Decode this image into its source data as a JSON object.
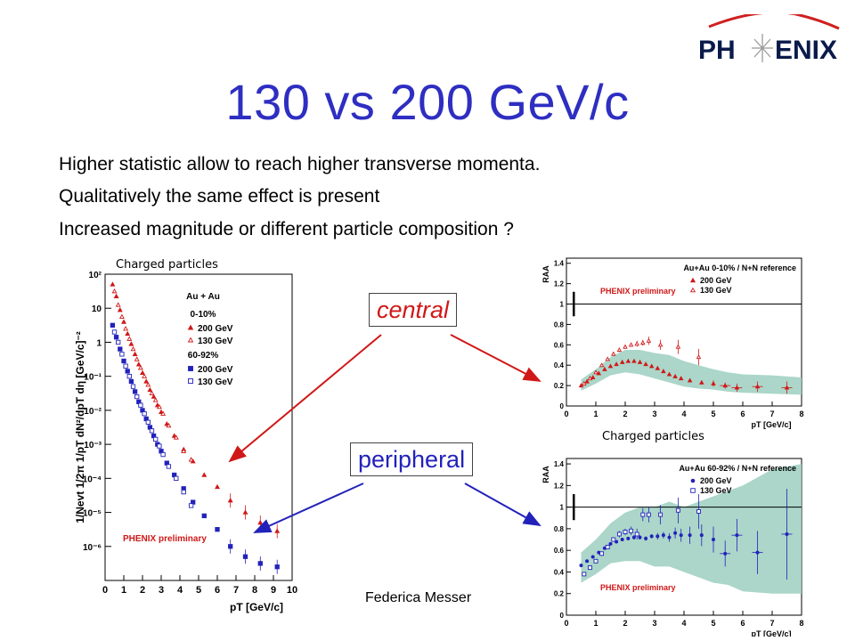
{
  "logo": {
    "text_left": "PH",
    "text_right": "ENIX",
    "color": "#0a1a4a",
    "accent": "#d02020"
  },
  "slide": {
    "title": "130 vs 200 GeV/c",
    "bullets": [
      "Higher statistic allow to reach higher transverse momenta.",
      "Qualitatively the same effect is present",
      "Increased magnitude or different particle composition ?"
    ],
    "callouts": {
      "central": "central",
      "peripheral": "peripheral"
    },
    "footer": "Federica Messer"
  },
  "colors": {
    "title": "#2e2ec2",
    "red": "#d01818",
    "blue": "#2222bb",
    "band": "#9ccfc0"
  },
  "chart_data": [
    {
      "type": "scatter",
      "caption": "Charged particles",
      "xlabel": "p_T [GeV/c]",
      "ylabel": "1/N_evt 1/2π 1/p_T dN²/dp_T dη [GeV/c]⁻²",
      "xlim": [
        0,
        10
      ],
      "ylim_log10": [
        -7,
        2
      ],
      "xticks": [
        "0",
        "1",
        "2",
        "3",
        "4",
        "5",
        "6",
        "7",
        "8",
        "9",
        "10"
      ],
      "yticks": [
        "10²",
        "10",
        "1",
        "10⁻¹",
        "10⁻²",
        "10⁻³",
        "10⁻⁴",
        "10⁻⁵",
        "10⁻⁶"
      ],
      "legend": {
        "header": "Au + Au",
        "groups": [
          "0-10%",
          "60-92%"
        ],
        "entries": [
          "200 GeV",
          "130 GeV",
          "200 GeV",
          "130 GeV"
        ]
      },
      "annotation": "PHENIX preliminary",
      "series": [
        {
          "name": "200 GeV",
          "group": "0-10%",
          "marker": "triangle-filled",
          "color": "#d01818",
          "x": [
            0.4,
            0.6,
            0.8,
            1.0,
            1.2,
            1.4,
            1.6,
            1.8,
            2.0,
            2.2,
            2.4,
            2.6,
            2.8,
            3.0,
            3.3,
            3.7,
            4.2,
            4.7,
            5.3,
            6.0,
            6.7,
            7.5,
            8.3,
            9.2
          ],
          "logy": [
            1.7,
            1.35,
            0.95,
            0.6,
            0.25,
            -0.05,
            -0.35,
            -0.65,
            -0.9,
            -1.15,
            -1.4,
            -1.6,
            -1.85,
            -2.05,
            -2.4,
            -2.75,
            -3.15,
            -3.5,
            -3.9,
            -4.25,
            -4.65,
            -5.0,
            -5.3,
            -5.55
          ]
        },
        {
          "name": "130 GeV",
          "group": "0-10%",
          "marker": "triangle-open",
          "color": "#d01818",
          "x": [
            0.5,
            0.7,
            0.9,
            1.1,
            1.3,
            1.5,
            1.7,
            1.9,
            2.1,
            2.3,
            2.5,
            2.7,
            2.9,
            3.1,
            3.4,
            3.8,
            4.2,
            4.6
          ],
          "logy": [
            1.5,
            1.1,
            0.75,
            0.4,
            0.1,
            -0.2,
            -0.5,
            -0.75,
            -1.0,
            -1.25,
            -1.5,
            -1.7,
            -1.9,
            -2.1,
            -2.45,
            -2.8,
            -3.2,
            -3.45
          ]
        },
        {
          "name": "200 GeV",
          "group": "60-92%",
          "marker": "square-filled",
          "color": "#2222bb",
          "x": [
            0.4,
            0.6,
            0.8,
            1.0,
            1.2,
            1.4,
            1.6,
            1.8,
            2.0,
            2.2,
            2.4,
            2.6,
            2.8,
            3.0,
            3.3,
            3.7,
            4.2,
            4.7,
            5.3,
            6.0,
            6.7,
            7.5,
            8.3,
            9.2
          ],
          "logy": [
            0.5,
            0.15,
            -0.2,
            -0.55,
            -0.85,
            -1.15,
            -1.45,
            -1.75,
            -2.0,
            -2.25,
            -2.5,
            -2.75,
            -3.0,
            -3.2,
            -3.55,
            -3.9,
            -4.3,
            -4.7,
            -5.1,
            -5.5,
            -6.0,
            -6.3,
            -6.5,
            -6.6
          ]
        },
        {
          "name": "130 GeV",
          "group": "60-92%",
          "marker": "square-open",
          "color": "#2222bb",
          "x": [
            0.5,
            0.7,
            0.9,
            1.1,
            1.3,
            1.5,
            1.7,
            1.9,
            2.1,
            2.3,
            2.5,
            2.7,
            2.9,
            3.1,
            3.4,
            3.8,
            4.2,
            4.6
          ],
          "logy": [
            0.3,
            0.0,
            -0.35,
            -0.7,
            -1.0,
            -1.3,
            -1.6,
            -1.85,
            -2.1,
            -2.35,
            -2.6,
            -2.85,
            -3.05,
            -3.3,
            -3.65,
            -4.0,
            -4.4,
            -4.8
          ]
        }
      ]
    },
    {
      "type": "scatter",
      "title": "Au+Au 0-10% / N+N reference",
      "ylabel": "R_AA",
      "xlabel": "p_T [GeV/c]",
      "xlim": [
        0,
        8
      ],
      "ylim": [
        0,
        1.45
      ],
      "xticks": [
        "0",
        "1",
        "2",
        "3",
        "4",
        "5",
        "6",
        "7",
        "8"
      ],
      "yticks": [
        "0",
        "0.2",
        "0.4",
        "0.6",
        "0.8",
        "1",
        "1.2",
        "1.4"
      ],
      "annotation": "PHENIX preliminary",
      "legend": [
        "200 GeV",
        "130 GeV"
      ],
      "band": {
        "x": [
          0.5,
          1.0,
          1.5,
          2.0,
          2.5,
          3.0,
          3.5,
          4.0,
          4.5,
          5.0,
          5.5,
          6.0,
          7.0,
          8.0
        ],
        "lo": [
          0.15,
          0.22,
          0.3,
          0.33,
          0.31,
          0.27,
          0.23,
          0.19,
          0.17,
          0.16,
          0.14,
          0.13,
          0.12,
          0.11
        ],
        "hi": [
          0.26,
          0.36,
          0.48,
          0.55,
          0.55,
          0.52,
          0.5,
          0.44,
          0.4,
          0.36,
          0.33,
          0.31,
          0.3,
          0.28
        ]
      },
      "series": [
        {
          "name": "200 GeV",
          "marker": "triangle-filled",
          "color": "#d01818",
          "x": [
            0.5,
            0.7,
            0.9,
            1.1,
            1.3,
            1.5,
            1.7,
            1.9,
            2.1,
            2.3,
            2.5,
            2.7,
            2.9,
            3.1,
            3.3,
            3.5,
            3.7,
            3.9,
            4.2,
            4.6,
            5.0,
            5.4,
            5.8,
            6.5,
            7.5
          ],
          "y": [
            0.2,
            0.24,
            0.28,
            0.32,
            0.36,
            0.39,
            0.41,
            0.43,
            0.44,
            0.44,
            0.43,
            0.41,
            0.39,
            0.37,
            0.34,
            0.31,
            0.29,
            0.27,
            0.25,
            0.23,
            0.22,
            0.2,
            0.18,
            0.19,
            0.18
          ],
          "err": [
            0.01,
            0.01,
            0.01,
            0.01,
            0.01,
            0.01,
            0.01,
            0.01,
            0.01,
            0.01,
            0.01,
            0.01,
            0.01,
            0.01,
            0.01,
            0.01,
            0.01,
            0.01,
            0.02,
            0.02,
            0.03,
            0.03,
            0.04,
            0.05,
            0.06
          ]
        },
        {
          "name": "130 GeV",
          "marker": "triangle-open",
          "color": "#d01818",
          "x": [
            0.6,
            0.8,
            1.0,
            1.2,
            1.4,
            1.6,
            1.8,
            2.0,
            2.2,
            2.4,
            2.6,
            2.8,
            3.2,
            3.8,
            4.5
          ],
          "y": [
            0.22,
            0.27,
            0.33,
            0.4,
            0.46,
            0.51,
            0.55,
            0.58,
            0.6,
            0.61,
            0.62,
            0.64,
            0.6,
            0.58,
            0.48
          ],
          "err": [
            0.01,
            0.01,
            0.01,
            0.01,
            0.01,
            0.02,
            0.02,
            0.02,
            0.02,
            0.03,
            0.03,
            0.04,
            0.05,
            0.07,
            0.08
          ]
        }
      ]
    },
    {
      "type": "scatter",
      "caption": "Charged particles",
      "title": "Au+Au 60-92% / N+N reference",
      "ylabel": "R_AA",
      "xlabel": "p_T [GeV/c]",
      "xlim": [
        0,
        8
      ],
      "ylim": [
        0,
        1.45
      ],
      "xticks": [
        "0",
        "1",
        "2",
        "3",
        "4",
        "5",
        "6",
        "7",
        "8"
      ],
      "yticks": [
        "0",
        "0.2",
        "0.4",
        "0.6",
        "0.8",
        "1",
        "1.2",
        "1.4"
      ],
      "annotation": "PHENIX preliminary",
      "legend": [
        "200 GeV",
        "130 GeV"
      ],
      "band": {
        "x": [
          0.5,
          1.0,
          1.5,
          2.0,
          2.5,
          3.0,
          3.5,
          4.0,
          4.5,
          5.0,
          5.5,
          6.0,
          7.0,
          8.0
        ],
        "lo": [
          0.3,
          0.38,
          0.48,
          0.5,
          0.5,
          0.45,
          0.45,
          0.4,
          0.35,
          0.3,
          0.28,
          0.22,
          0.2,
          0.2
        ],
        "hi": [
          0.58,
          0.7,
          0.85,
          0.95,
          1.0,
          1.0,
          1.05,
          1.0,
          1.05,
          1.1,
          1.15,
          1.2,
          1.35,
          1.4
        ]
      },
      "series": [
        {
          "name": "200 GeV",
          "marker": "circle-filled",
          "color": "#2222bb",
          "x": [
            0.5,
            0.7,
            0.9,
            1.1,
            1.3,
            1.5,
            1.7,
            1.9,
            2.1,
            2.3,
            2.5,
            2.7,
            2.9,
            3.1,
            3.3,
            3.5,
            3.7,
            3.9,
            4.2,
            4.6,
            5.0,
            5.4,
            5.8,
            6.5,
            7.5
          ],
          "y": [
            0.46,
            0.5,
            0.54,
            0.58,
            0.62,
            0.66,
            0.68,
            0.7,
            0.71,
            0.72,
            0.72,
            0.71,
            0.73,
            0.73,
            0.74,
            0.72,
            0.76,
            0.74,
            0.74,
            0.74,
            0.7,
            0.57,
            0.74,
            0.58,
            0.75
          ],
          "err": [
            0.01,
            0.01,
            0.01,
            0.01,
            0.01,
            0.01,
            0.01,
            0.01,
            0.01,
            0.02,
            0.02,
            0.02,
            0.02,
            0.03,
            0.03,
            0.04,
            0.05,
            0.06,
            0.08,
            0.1,
            0.12,
            0.12,
            0.15,
            0.2,
            0.42
          ]
        },
        {
          "name": "130 GeV",
          "marker": "square-open",
          "color": "#2222bb",
          "x": [
            0.6,
            0.8,
            1.0,
            1.2,
            1.4,
            1.6,
            1.8,
            2.0,
            2.2,
            2.4,
            2.6,
            2.8,
            3.2,
            3.8,
            4.5
          ],
          "y": [
            0.38,
            0.44,
            0.5,
            0.57,
            0.63,
            0.7,
            0.75,
            0.77,
            0.78,
            0.75,
            0.93,
            0.93,
            0.93,
            0.97,
            0.96
          ],
          "err": [
            0.01,
            0.01,
            0.01,
            0.02,
            0.02,
            0.02,
            0.03,
            0.03,
            0.04,
            0.05,
            0.06,
            0.07,
            0.09,
            0.12,
            0.16
          ]
        }
      ]
    }
  ]
}
